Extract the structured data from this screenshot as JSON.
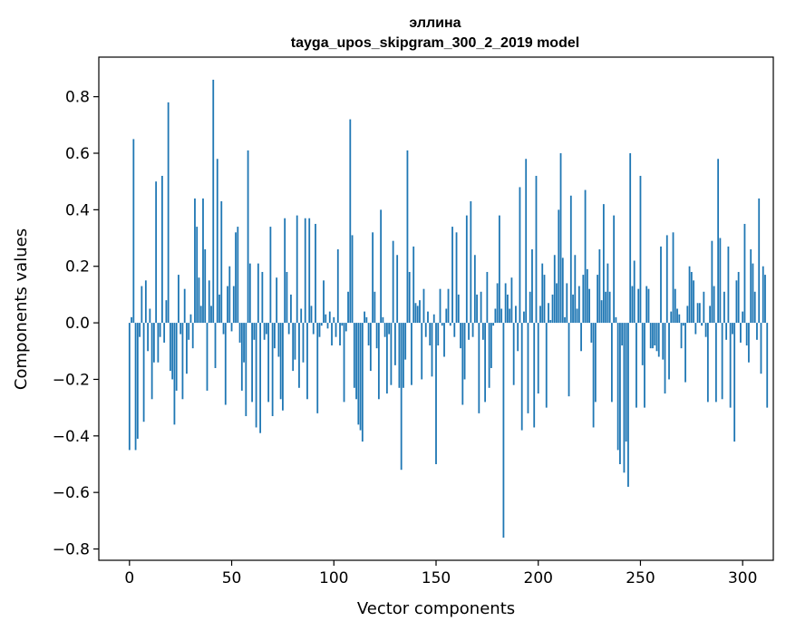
{
  "chart_data": {
    "type": "bar",
    "title_line1": "эллина",
    "title_line2": "tayga_upos_skipgram_300_2_2019 model",
    "xlabel": "Vector components",
    "ylabel": "Components values",
    "xlim": [
      -15,
      315
    ],
    "ylim": [
      -0.84,
      0.94
    ],
    "xticks": [
      0,
      50,
      100,
      150,
      200,
      250,
      300
    ],
    "xtick_labels": [
      "0",
      "50",
      "100",
      "150",
      "200",
      "250",
      "300"
    ],
    "yticks": [
      -0.8,
      -0.6,
      -0.4,
      -0.2,
      0.0,
      0.2,
      0.4,
      0.6,
      0.8
    ],
    "ytick_labels": [
      "−0.8",
      "−0.6",
      "−0.4",
      "−0.2",
      "0.0",
      "0.2",
      "0.4",
      "0.6",
      "0.8"
    ],
    "bar_color": "#1f77b4",
    "values": [
      -0.45,
      0.02,
      0.65,
      -0.45,
      -0.41,
      -0.05,
      0.13,
      -0.35,
      0.15,
      -0.1,
      0.05,
      -0.27,
      -0.14,
      0.5,
      -0.14,
      -0.05,
      0.52,
      -0.07,
      0.08,
      0.78,
      -0.17,
      -0.2,
      -0.36,
      -0.24,
      0.17,
      -0.04,
      -0.27,
      0.12,
      -0.18,
      -0.06,
      0.03,
      -0.09,
      0.44,
      0.34,
      0.16,
      0.06,
      0.44,
      0.26,
      -0.24,
      0.15,
      0.06,
      0.86,
      -0.16,
      0.58,
      0.1,
      0.43,
      -0.04,
      -0.29,
      0.13,
      0.2,
      -0.03,
      0.13,
      0.32,
      0.34,
      -0.07,
      -0.24,
      -0.14,
      -0.33,
      0.61,
      0.21,
      -0.28,
      -0.06,
      -0.37,
      0.21,
      -0.39,
      0.18,
      -0.06,
      -0.04,
      -0.28,
      0.34,
      -0.33,
      -0.09,
      0.16,
      -0.12,
      -0.27,
      -0.31,
      0.37,
      0.18,
      -0.04,
      0.1,
      -0.17,
      -0.13,
      0.38,
      -0.23,
      0.05,
      -0.14,
      0.37,
      -0.27,
      0.37,
      0.06,
      -0.04,
      0.35,
      -0.32,
      -0.05,
      -0.01,
      0.15,
      0.03,
      -0.02,
      0.04,
      -0.08,
      0.02,
      -0.05,
      0.26,
      -0.08,
      -0.01,
      -0.28,
      -0.03,
      0.11,
      0.72,
      0.31,
      -0.23,
      -0.27,
      -0.36,
      -0.38,
      -0.42,
      0.04,
      0.02,
      -0.08,
      -0.17,
      0.32,
      0.11,
      -0.09,
      -0.27,
      0.4,
      0.02,
      -0.05,
      -0.25,
      -0.04,
      -0.22,
      0.29,
      -0.15,
      0.24,
      -0.23,
      -0.52,
      -0.23,
      -0.13,
      0.61,
      0.18,
      -0.22,
      0.27,
      0.07,
      0.06,
      0.08,
      -0.2,
      0.12,
      -0.05,
      0.04,
      -0.08,
      -0.19,
      0.03,
      -0.5,
      -0.08,
      0.12,
      -0.01,
      -0.12,
      0.05,
      0.12,
      -0.01,
      0.34,
      -0.05,
      0.32,
      0.1,
      -0.09,
      -0.29,
      -0.2,
      0.38,
      -0.06,
      0.43,
      -0.05,
      0.24,
      0.1,
      -0.32,
      0.11,
      -0.06,
      -0.28,
      0.18,
      -0.23,
      -0.16,
      -0.01,
      0.05,
      0.14,
      0.38,
      0.05,
      -0.76,
      0.14,
      0.1,
      0.05,
      0.16,
      -0.22,
      0.06,
      -0.1,
      0.48,
      -0.38,
      0.04,
      0.58,
      -0.32,
      0.11,
      0.26,
      -0.37,
      0.52,
      -0.25,
      0.06,
      0.21,
      0.17,
      -0.3,
      0.07,
      0.01,
      0.1,
      0.24,
      0.14,
      0.4,
      0.6,
      0.23,
      0.02,
      0.14,
      -0.26,
      0.45,
      0.1,
      0.24,
      0.05,
      0.13,
      -0.1,
      0.17,
      0.47,
      0.19,
      0.12,
      -0.07,
      -0.37,
      -0.28,
      0.17,
      0.26,
      0.08,
      0.42,
      0.11,
      0.21,
      0.11,
      -0.28,
      0.38,
      0.02,
      -0.45,
      -0.5,
      -0.08,
      -0.53,
      -0.42,
      -0.58,
      0.6,
      0.13,
      0.22,
      -0.3,
      0.12,
      0.52,
      -0.15,
      -0.3,
      0.13,
      0.12,
      -0.09,
      -0.09,
      -0.08,
      -0.1,
      -0.12,
      0.27,
      -0.13,
      -0.25,
      0.31,
      -0.2,
      0.04,
      0.32,
      0.12,
      0.05,
      0.03,
      -0.09,
      -0.01,
      -0.21,
      0.06,
      0.2,
      0.18,
      0.15,
      -0.04,
      0.07,
      0.07,
      -0.01,
      0.11,
      -0.05,
      -0.28,
      0.06,
      0.29,
      0.13,
      -0.28,
      0.58,
      0.3,
      -0.27,
      0.11,
      -0.06,
      0.27,
      -0.3,
      -0.04,
      -0.42,
      0.15,
      0.18,
      -0.07,
      0.04,
      0.35,
      -0.08,
      -0.14,
      0.26,
      0.21,
      0.11,
      -0.06,
      0.44,
      -0.18,
      0.2,
      0.17,
      -0.3
    ]
  }
}
